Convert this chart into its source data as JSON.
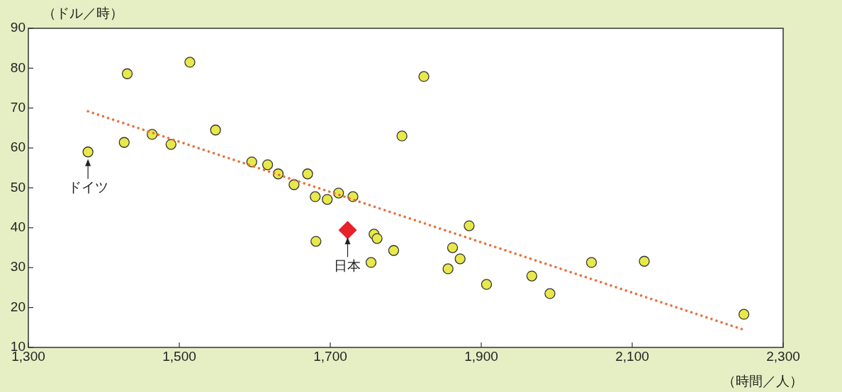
{
  "chart_data": {
    "type": "scatter",
    "xlabel": "（時間／人）",
    "ylabel": "（ドル／時）",
    "xlim": [
      1300,
      2300
    ],
    "xticks": [
      {
        "value": 1300,
        "label": "1,300"
      },
      {
        "value": 1500,
        "label": "1,500"
      },
      {
        "value": 1700,
        "label": "1,700"
      },
      {
        "value": 1900,
        "label": "1,900"
      },
      {
        "value": 2100,
        "label": "2,100"
      },
      {
        "value": 2300,
        "label": "2,300"
      }
    ],
    "ylim": [
      10,
      90
    ],
    "yticks": [
      10,
      20,
      30,
      40,
      50,
      60,
      70,
      80,
      90
    ],
    "grid": false,
    "legend": false,
    "series": [
      {
        "type": "line",
        "color": "#e8703a",
        "line_style": "dotted",
        "marker": "none",
        "x": [
          1379,
          2245
        ],
        "values": [
          69.2,
          14.6
        ]
      },
      {
        "color": "#e8e84a",
        "marker": "circle",
        "x": [
          1379,
          1427,
          1431,
          1464,
          1489,
          1514,
          1548,
          1596,
          1617,
          1631,
          1652,
          1670,
          1680,
          1681,
          1696,
          1711,
          1730,
          1754,
          1758,
          1762,
          1784,
          1795,
          1824,
          1856,
          1862,
          1872,
          1884,
          1907,
          1967,
          1991,
          2046,
          2116,
          2248
        ],
        "values": [
          59,
          61.4,
          78.6,
          63.4,
          60.9,
          81.5,
          64.5,
          56.5,
          55.8,
          53.5,
          50.8,
          53.5,
          47.8,
          36.6,
          47.1,
          48.7,
          47.8,
          31.3,
          38.4,
          37.3,
          34.3,
          63,
          77.9,
          29.7,
          35,
          32.2,
          40.5,
          25.8,
          27.9,
          23.5,
          31.3,
          31.6,
          18.3
        ]
      },
      {
        "color": "#e8202a",
        "marker": "diamond",
        "x": [
          1723
        ],
        "values": [
          39.4
        ]
      }
    ],
    "annotations": [
      {
        "text": "ドイツ",
        "x": 1379,
        "y": 59
      },
      {
        "text": "日本",
        "x": 1723,
        "y": 39.4
      }
    ]
  }
}
